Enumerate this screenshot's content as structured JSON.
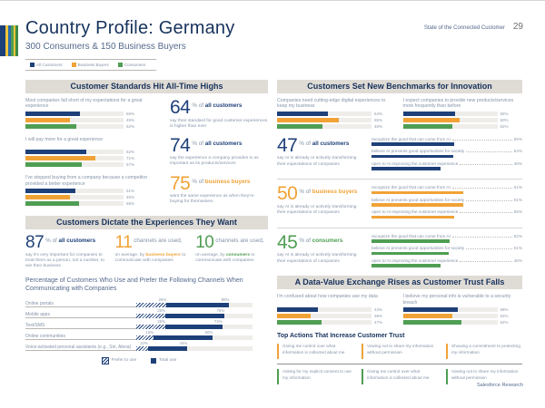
{
  "meta": {
    "title": "Country Profile: Germany",
    "subtitle": "300 Consumers & 150 Business Buyers",
    "brand": "State of the Connected Customer",
    "page_number": "29",
    "footer": "Salesforce Research"
  },
  "colors": {
    "navy_text": "#16325c",
    "all_customers_blue": "#1e4079",
    "business_buyers_orange": "#f0a236",
    "consumers_green": "#4f9e53",
    "band_background": "#dfdbd5",
    "body_gray": "#8493a8"
  },
  "legend": {
    "items": [
      {
        "label": "All Customers",
        "color": "#1e4079"
      },
      {
        "label": "Business Buyers",
        "color": "#f0a236"
      },
      {
        "label": "Consumers",
        "color": "#4f9e53"
      }
    ]
  },
  "standards": {
    "header": "Customer Standards Hit All-Time Highs",
    "groups": [
      {
        "statement": "Most companies fall short of my expectations for a great experience",
        "values": [
          56,
          45,
          52
        ],
        "labels": [
          "56%",
          "45%",
          "52%"
        ]
      },
      {
        "statement": "I will pay more for a great experience",
        "values": [
          62,
          71,
          57
        ],
        "labels": [
          "62%",
          "71%",
          "57%"
        ]
      },
      {
        "statement": "I've stopped buying from a company because a competitor provided a better experience",
        "values": [
          51,
          45,
          55
        ],
        "labels": [
          "51%",
          "45%",
          "55%"
        ]
      }
    ],
    "stats": [
      {
        "value": "64",
        "unit": "% of",
        "audience": "all customers",
        "caption": "say their standard for good customer experiences is higher than ever"
      },
      {
        "value": "74",
        "unit": "% of",
        "audience": "all customers",
        "caption": "say the experience a company provides is as important as its products/services"
      },
      {
        "value": "75",
        "unit": "% of",
        "audience": "business buyers",
        "caption": "want the same experience as when they're buying for themselves"
      }
    ]
  },
  "dictate": {
    "header": "Customers Dictate the Experiences They Want",
    "stats": [
      {
        "value": "87",
        "unit": "% of",
        "audience": "all customers",
        "caption": "say it's very important for companies to treat them as a person, not a number, to win their business"
      },
      {
        "value": "11",
        "unit": "channels are used,",
        "caption_pre": "on average, by ",
        "audience": "business buyers",
        "caption_post": " to communicate with companies"
      },
      {
        "value": "10",
        "unit": "channels are used,",
        "caption_pre": "on average, by ",
        "audience": "consumers",
        "caption_post": " to communicate with companies"
      }
    ],
    "chart": {
      "title": "Percentage of Customers Who Use and Prefer the Following Channels When Communicating with Companies",
      "rows": [
        {
          "label": "Online portals",
          "prefer": 26,
          "total": 80,
          "prefer_label": "26%",
          "total_label": "80%"
        },
        {
          "label": "Mobile apps",
          "prefer": 25,
          "total": 76,
          "prefer_label": "25%",
          "total_label": "76%"
        },
        {
          "label": "Text/SMS",
          "prefer": 25,
          "total": 74,
          "prefer_label": "25%",
          "total_label": "74%"
        },
        {
          "label": "Online communities",
          "prefer": 15,
          "total": 66,
          "prefer_label": "15%",
          "total_label": "66%"
        },
        {
          "label": "Voice-activated personal assistants (e.g., Siri, Alexa)",
          "prefer": 10,
          "total": 44,
          "prefer_label": "10%",
          "total_label": "44%"
        }
      ],
      "legend": [
        {
          "label": "Prefer to use"
        },
        {
          "label": "Total use"
        }
      ]
    }
  },
  "innovation": {
    "header": "Customers Set New Benchmarks for Innovation",
    "groups": [
      {
        "statement": "Companies need cutting-edge digital experiences to keep my business",
        "values": [
          54,
          65,
          48
        ],
        "labels": [
          "54%",
          "65%",
          "48%"
        ]
      },
      {
        "statement": "I expect companies to provide new products/services more frequently than before",
        "values": [
          55,
          60,
          52
        ],
        "labels": [
          "55%",
          "60%",
          "52%"
        ]
      }
    ],
    "ai_blocks": [
      {
        "value": "47",
        "unit": "% of",
        "audience": "all customers",
        "caption": "say AI is already or actively transforming their expectations of companies",
        "bars": [
          {
            "label": "recognize the good that can come from AI",
            "value": 55,
            "pct": "55%"
          },
          {
            "label": "believe AI presents good opportunities for society",
            "value": 54,
            "pct": "54%"
          },
          {
            "label": "open to AI improving the customer experience",
            "value": 46,
            "pct": "46%"
          }
        ]
      },
      {
        "value": "50",
        "unit": "% of",
        "audience": "business buyers",
        "caption": "say AI is already or actively transforming their expectations of companies",
        "bars": [
          {
            "label": "recognize the good that can come from AI",
            "value": 61,
            "pct": "61%"
          },
          {
            "label": "believe AI presents good opportunities for society",
            "value": 61,
            "pct": "61%"
          },
          {
            "label": "open to AI improving the customer experience",
            "value": 55,
            "pct": "55%"
          }
        ]
      },
      {
        "value": "45",
        "unit": "% of",
        "audience": "consumers",
        "caption": "say AI is already or actively transforming their expectations of companies",
        "bars": [
          {
            "label": "recognize the good that can come from AI",
            "value": 52,
            "pct": "52%"
          },
          {
            "label": "believe AI presents good opportunities for society",
            "value": 51,
            "pct": "51%"
          },
          {
            "label": "open to AI improving the customer experience",
            "value": 46,
            "pct": "46%"
          }
        ]
      }
    ]
  },
  "trust": {
    "header": "A Data-Value Exchange Rises as Customer Trust Falls",
    "groups": [
      {
        "statement": "I'm confused about how companies use my data",
        "values": [
          43,
          36,
          47
        ],
        "labels": [
          "43%",
          "36%",
          "47%"
        ]
      },
      {
        "statement": "I believe my personal info is vulnerable to a security breach",
        "values": [
          58,
          52,
          62
        ],
        "labels": [
          "58%",
          "52%",
          "62%"
        ]
      }
    ],
    "actions_title": "Top Actions That Increase Customer Trust",
    "actions_row1": [
      "Giving me control over what information is collected about me",
      "Vowing not to share my information without permission",
      "Showing a commitment to protecting my information"
    ],
    "actions_row2": [
      "Asking for my explicit consent to use my information",
      "Giving me control over what information is collected about me",
      "Vowing not to share my information without permission"
    ]
  }
}
